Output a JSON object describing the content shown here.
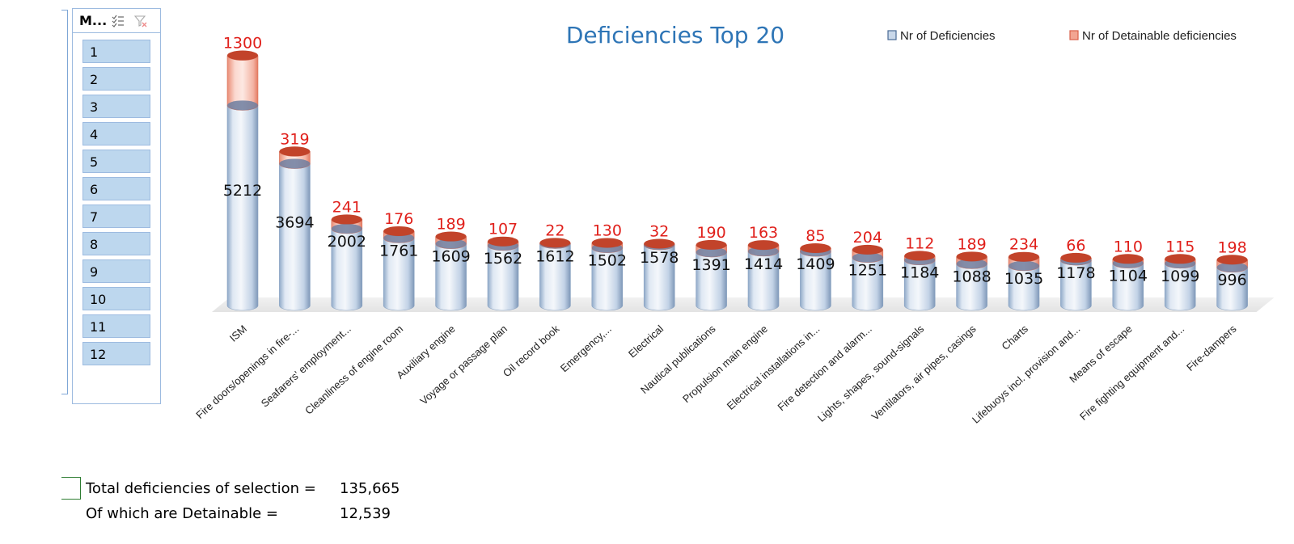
{
  "slicer": {
    "title": "M...",
    "items": [
      "1",
      "2",
      "3",
      "4",
      "5",
      "6",
      "7",
      "8",
      "9",
      "10",
      "11",
      "12"
    ]
  },
  "chart_data": {
    "type": "bar",
    "title": "Deficiencies Top 20",
    "stacked": true,
    "legend_position": "top-right",
    "categories": [
      "ISM",
      "Fire doors/openings in fire-...",
      "Seafarers' employment...",
      "Cleanliness of engine room",
      "Auxiliary engine",
      "Voyage or passage plan",
      "Oil record book",
      "Emergency,...",
      "Electrical",
      "Nautical publications",
      "Propulsion main engine",
      "Electrical installations in...",
      "Fire detection and alarm...",
      "Lights, shapes, sound-signals",
      "Ventilators, air pipes, casings",
      "Charts",
      "Lifebuoys incl. provision and...",
      "Means of escape",
      "Fire fighting equipment and...",
      "Fire-dampers"
    ],
    "series": [
      {
        "name": "Nr of Deficiencies",
        "color": "#c9d8ea",
        "values": [
          5212,
          3694,
          2002,
          1761,
          1609,
          1562,
          1612,
          1502,
          1578,
          1391,
          1414,
          1409,
          1251,
          1184,
          1088,
          1035,
          1178,
          1104,
          1099,
          996
        ]
      },
      {
        "name": "Nr of Detainable deficiencies",
        "color": "#f2a592",
        "values": [
          1300,
          319,
          241,
          176,
          189,
          107,
          22,
          130,
          32,
          190,
          163,
          85,
          204,
          112,
          189,
          234,
          66,
          110,
          115,
          198
        ]
      }
    ],
    "ylim": [
      0,
      6650
    ]
  },
  "totals": {
    "total_label": "Total deficiencies of selection =",
    "total_value": "135,665",
    "detainable_label": "Of which are Detainable =",
    "detainable_value": "12,539"
  },
  "colors": {
    "title": "#2e75b6",
    "detainable_label": "#e0201b",
    "accent_box": "#2e7d32"
  }
}
